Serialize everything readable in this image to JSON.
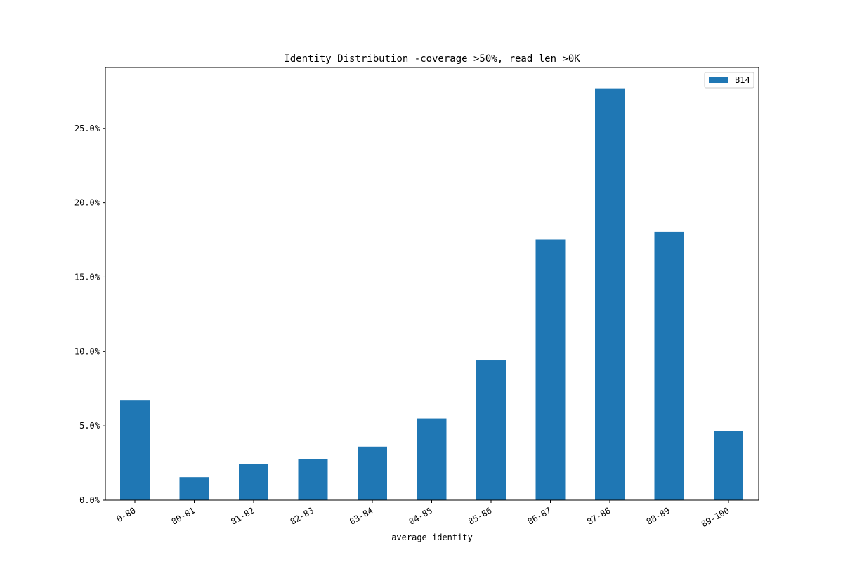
{
  "chart_data": {
    "type": "bar",
    "title": "Identity Distribution -coverage >50%, read len >0K",
    "xlabel": "average_identity",
    "ylabel": "",
    "categories": [
      "0-80",
      "80-81",
      "81-82",
      "82-83",
      "83-84",
      "84-85",
      "85-86",
      "86-87",
      "87-88",
      "88-89",
      "89-100"
    ],
    "series": [
      {
        "name": "B14",
        "values": [
          6.7,
          1.55,
          2.45,
          2.75,
          3.6,
          5.5,
          9.4,
          17.55,
          27.7,
          18.05,
          4.65
        ]
      }
    ],
    "y_ticks": [
      {
        "value": 0,
        "label": "0.0%"
      },
      {
        "value": 5,
        "label": "5.0%"
      },
      {
        "value": 10,
        "label": "10.0%"
      },
      {
        "value": 15,
        "label": "15.0%"
      },
      {
        "value": 20,
        "label": "20.0%"
      },
      {
        "value": 25,
        "label": "25.0%"
      }
    ],
    "ylim": [
      0,
      29.1
    ],
    "grid": false,
    "legend_position": "top-right",
    "bar_color": "#1f77b4"
  }
}
